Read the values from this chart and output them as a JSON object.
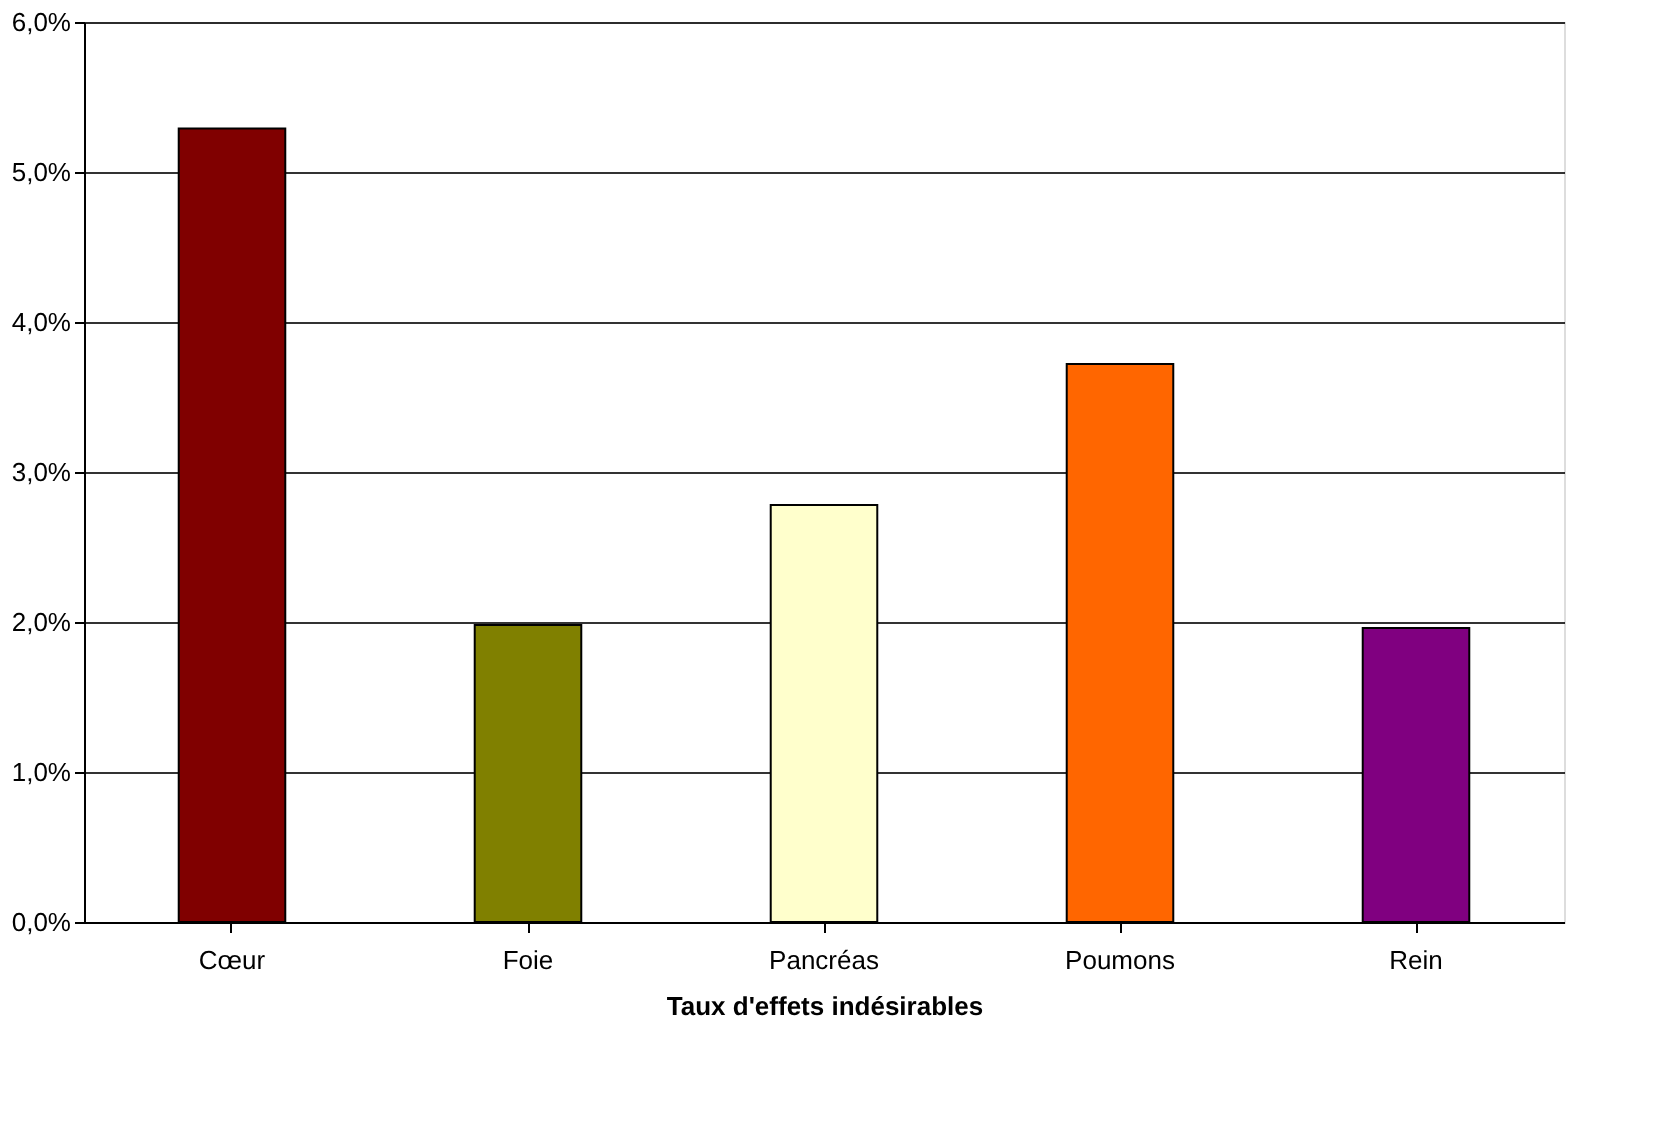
{
  "chart_data": {
    "type": "bar",
    "xlabel": "Taux d'effets indésirables",
    "categories": [
      "Cœur",
      "Foie",
      "Pancréas",
      "Poumons",
      "Rein"
    ],
    "values": [
      5.29,
      1.98,
      2.78,
      3.72,
      1.96
    ],
    "colors": [
      "#800000",
      "#808000",
      "#ffffcc",
      "#ff6600",
      "#800080"
    ],
    "ylim": [
      0,
      6
    ],
    "yticks": [
      {
        "value": 0,
        "label": "0,0%"
      },
      {
        "value": 1,
        "label": "1,0%"
      },
      {
        "value": 2,
        "label": "2,0%"
      },
      {
        "value": 3,
        "label": "3,0%"
      },
      {
        "value": 4,
        "label": "4,0%"
      },
      {
        "value": 5,
        "label": "5,0%"
      },
      {
        "value": 6,
        "label": "6,0%"
      }
    ],
    "grid": "y",
    "legend": false
  }
}
